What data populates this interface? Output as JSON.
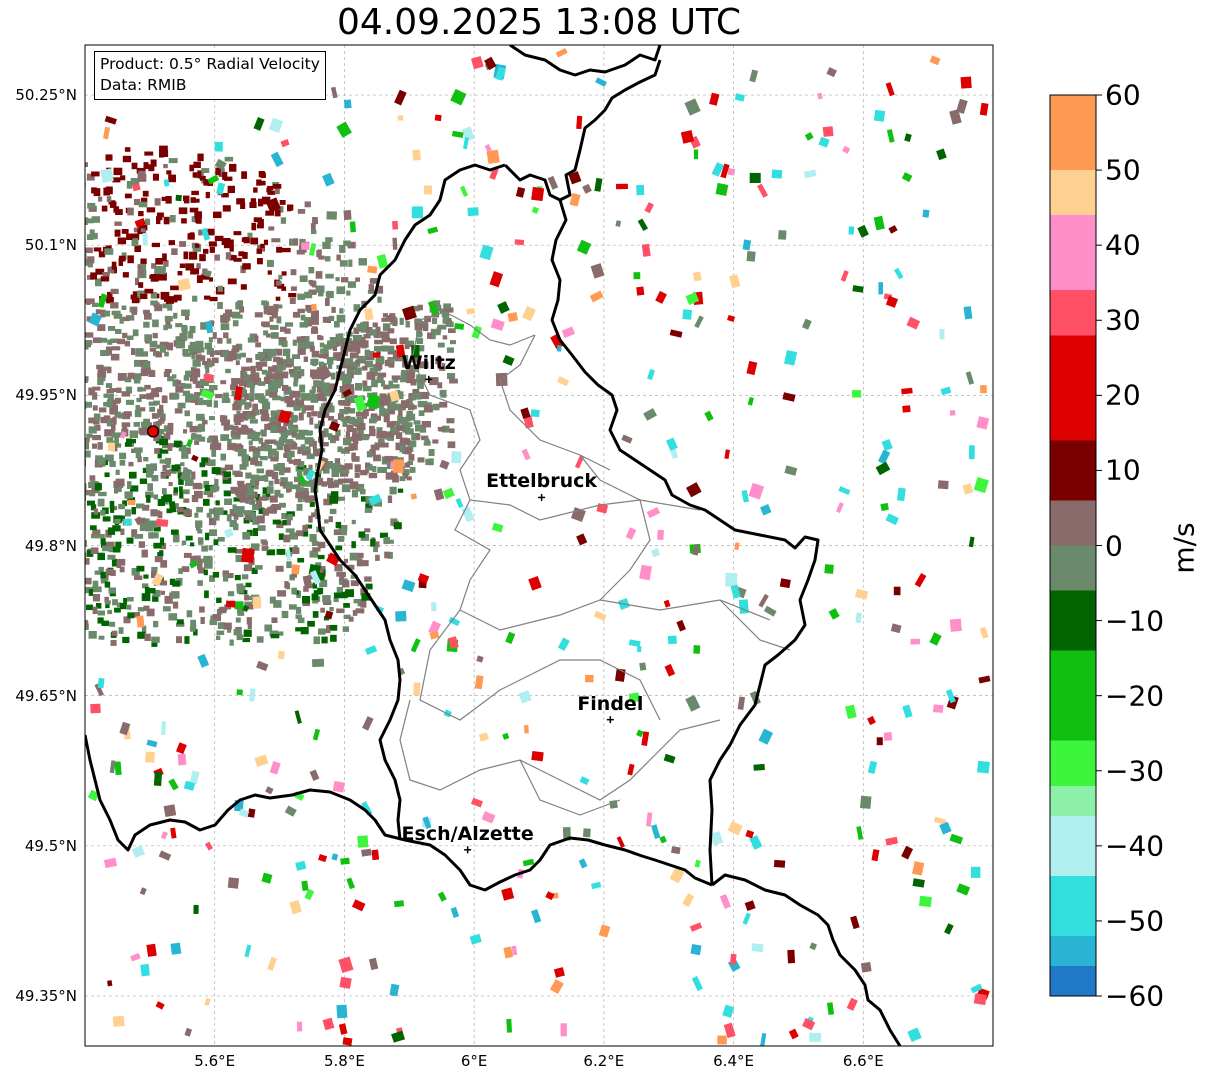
{
  "title": "04.09.2025 13:08 UTC",
  "info": {
    "line1": "Product: 0.5° Radial Velocity",
    "line2": "Data: RMIB"
  },
  "cities": [
    {
      "name": "Wiltz",
      "lon": 5.93,
      "lat": 49.966
    },
    {
      "name": "Ettelbruck",
      "lon": 6.104,
      "lat": 49.848
    },
    {
      "name": "Findel",
      "lon": 6.21,
      "lat": 49.626
    },
    {
      "name": "Esch/Alzette",
      "lon": 5.99,
      "lat": 49.496
    }
  ],
  "radar_site": {
    "lon": 5.505,
    "lat": 49.914,
    "color": "#e60000"
  },
  "axes": {
    "lon_ticks": [
      "5.6°E",
      "5.8°E",
      "6°E",
      "6.2°E",
      "6.4°E",
      "6.6°E"
    ],
    "lat_ticks": [
      "50.25°N",
      "50.1°N",
      "49.95°N",
      "49.8°N",
      "49.65°N",
      "49.5°N",
      "49.35°N"
    ],
    "lon_range": [
      5.4,
      6.8
    ],
    "lat_range": [
      49.3,
      50.3
    ]
  },
  "colorbar": {
    "unit": "m/s",
    "range": [
      -60,
      60
    ],
    "tick_labels": [
      "60",
      "50",
      "40",
      "30",
      "20",
      "10",
      "0",
      "−10",
      "−20",
      "−30",
      "−40",
      "−50",
      "−60"
    ],
    "stops": [
      {
        "from": -60,
        "to": -56,
        "color": "#1f78c8"
      },
      {
        "from": -56,
        "to": -52,
        "color": "#28b4d2"
      },
      {
        "from": -52,
        "to": -44,
        "color": "#33dede"
      },
      {
        "from": -44,
        "to": -36,
        "color": "#b0eef0"
      },
      {
        "from": -36,
        "to": -32,
        "color": "#8cf0a8"
      },
      {
        "from": -32,
        "to": -26,
        "color": "#3ef53e"
      },
      {
        "from": -26,
        "to": -14,
        "color": "#10c010"
      },
      {
        "from": -14,
        "to": -6,
        "color": "#006400"
      },
      {
        "from": -6,
        "to": 0,
        "color": "#6b8a6b"
      },
      {
        "from": 0,
        "to": 6,
        "color": "#8a6b6b"
      },
      {
        "from": 6,
        "to": 14,
        "color": "#7a0000"
      },
      {
        "from": 14,
        "to": 28,
        "color": "#dd0000"
      },
      {
        "from": 28,
        "to": 34,
        "color": "#ff5066"
      },
      {
        "from": 34,
        "to": 44,
        "color": "#ff8fc8"
      },
      {
        "from": 44,
        "to": 50,
        "color": "#ffd090"
      },
      {
        "from": 50,
        "to": 60,
        "color": "#ff9a55"
      }
    ]
  }
}
